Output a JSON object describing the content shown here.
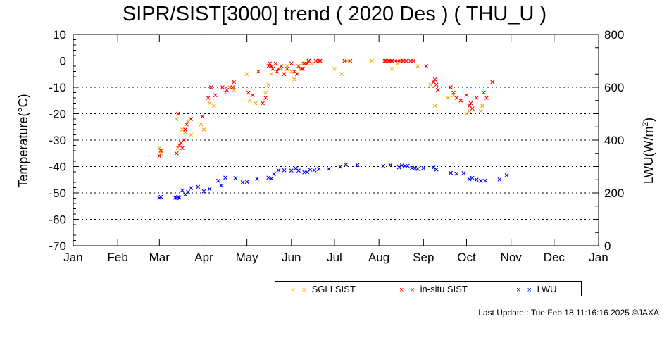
{
  "chart_data": {
    "type": "scatter",
    "title": "SIPR/SIST[3000] trend ( 2020 Des ) ( THU_U )",
    "ylabel": "Temperature(°C)",
    "y2label_main": "LWU(W/m",
    "y2label_sup": "2",
    "y2label_end": ")",
    "ylim": [
      -70,
      10
    ],
    "y2lim": [
      0,
      800
    ],
    "xlim_days": [
      0,
      366
    ],
    "y_ticks": [
      "10",
      "0",
      "-10",
      "-20",
      "-30",
      "-40",
      "-50",
      "-60",
      "-70"
    ],
    "y2_ticks": [
      "800",
      "600",
      "400",
      "200",
      "0"
    ],
    "x_ticks": [
      "Jan",
      "Feb",
      "Mar",
      "Apr",
      "May",
      "Jun",
      "Jul",
      "Aug",
      "Sep",
      "Oct",
      "Nov",
      "Dec",
      "Jan"
    ],
    "grid": "horizontal dotted",
    "colors": {
      "sgli": "#ffa500",
      "insitu": "#ff0000",
      "lwu": "#0000ff"
    },
    "series": [
      {
        "name": "SGLI SIST",
        "axis": "left",
        "x": [
          "2020-03-01",
          "2020-03-02",
          "2020-03-13",
          "2020-03-14",
          "2020-03-17",
          "2020-03-19",
          "2020-03-21",
          "2020-03-23",
          "2020-03-30",
          "2020-04-01",
          "2020-04-05",
          "2020-04-08",
          "2020-04-16",
          "2020-04-19",
          "2020-04-22",
          "2020-05-01",
          "2020-05-03",
          "2020-05-07",
          "2020-05-14",
          "2020-05-16",
          "2020-05-18",
          "2020-05-22",
          "2020-05-25",
          "2020-05-27",
          "2020-05-29",
          "2020-06-01",
          "2020-06-03",
          "2020-06-05",
          "2020-06-07",
          "2020-06-09",
          "2020-06-11",
          "2020-06-13",
          "2020-06-15",
          "2020-06-21",
          "2020-07-01",
          "2020-07-06",
          "2020-07-10",
          "2020-07-27",
          "2020-08-07",
          "2020-08-10",
          "2020-08-14",
          "2020-08-17",
          "2020-08-28",
          "2020-09-06",
          "2020-09-09",
          "2020-09-18",
          "2020-09-22",
          "2020-09-27",
          "2020-10-01",
          "2020-10-03",
          "2020-10-11",
          "2020-10-12"
        ],
        "y": [
          -33,
          -35,
          -22,
          -33,
          -26,
          -27,
          -23,
          -28,
          -24,
          -26,
          -16,
          -17,
          -12,
          -10,
          -11,
          -5,
          -15,
          -16,
          -12,
          -9,
          -5,
          -4,
          -3,
          -5,
          -2,
          -4,
          -7,
          -5,
          -3,
          -1,
          -1,
          0,
          -1,
          0,
          -3,
          -5,
          0,
          0,
          0,
          -3,
          -1,
          0,
          -2,
          -9,
          -17,
          -14,
          -13,
          -15,
          -20,
          -19,
          -19,
          -17
        ]
      },
      {
        "name": "in-situ SIST",
        "axis": "left",
        "x": [
          "2020-03-01",
          "2020-03-02",
          "2020-03-13",
          "2020-03-14",
          "2020-03-15",
          "2020-03-16",
          "2020-03-17",
          "2020-03-18",
          "2020-03-19",
          "2020-03-20",
          "2020-03-23",
          "2020-03-31",
          "2020-04-04",
          "2020-04-06",
          "2020-04-09",
          "2020-04-14",
          "2020-04-17",
          "2020-04-21",
          "2020-04-22",
          "2020-05-02",
          "2020-05-05",
          "2020-05-09",
          "2020-05-12",
          "2020-05-14",
          "2020-05-16",
          "2020-05-17",
          "2020-05-18",
          "2020-05-19",
          "2020-05-21",
          "2020-05-22",
          "2020-05-23",
          "2020-05-25",
          "2020-05-27",
          "2020-05-29",
          "2020-06-01",
          "2020-06-03",
          "2020-06-05",
          "2020-06-06",
          "2020-06-08",
          "2020-06-09",
          "2020-06-10",
          "2020-06-12",
          "2020-06-13",
          "2020-06-18",
          "2020-06-20",
          "2020-06-21",
          "2020-07-08",
          "2020-07-12",
          "2020-08-05",
          "2020-08-06",
          "2020-08-08",
          "2020-08-09",
          "2020-08-10",
          "2020-08-12",
          "2020-08-14",
          "2020-08-16",
          "2020-08-18",
          "2020-08-20",
          "2020-08-23",
          "2020-08-25",
          "2020-09-03",
          "2020-09-08",
          "2020-09-09",
          "2020-09-10",
          "2020-09-11",
          "2020-09-20",
          "2020-09-22",
          "2020-09-24",
          "2020-09-27",
          "2020-10-01",
          "2020-10-03",
          "2020-10-04",
          "2020-10-05",
          "2020-10-08",
          "2020-10-13",
          "2020-10-15",
          "2020-10-19"
        ],
        "y": [
          -36,
          -34,
          -35,
          -20,
          -32,
          -31,
          -33,
          -30,
          -26,
          -24,
          -22,
          -21,
          -14,
          -10,
          -13,
          -10,
          -11,
          -10,
          -8,
          -12,
          -13,
          -4,
          -16,
          -14,
          -2,
          -1,
          -2,
          -3,
          -1,
          -4,
          -3,
          -2,
          -5,
          -3,
          -1,
          -4,
          -5,
          -2,
          -3,
          -3,
          -1,
          -1,
          0,
          0,
          0,
          0,
          0,
          0,
          0,
          0,
          0,
          0,
          0,
          0,
          0,
          0,
          0,
          0,
          0,
          0,
          -2,
          -8,
          -7,
          -9,
          -11,
          -10,
          -12,
          -14,
          -15,
          -13,
          -17,
          -16,
          -18,
          -14,
          -12,
          -14,
          -8
        ]
      },
      {
        "name": "LWU",
        "axis": "right",
        "x": [
          "2020-03-01",
          "2020-03-02",
          "2020-03-12",
          "2020-03-13",
          "2020-03-14",
          "2020-03-15",
          "2020-03-17",
          "2020-03-19",
          "2020-03-21",
          "2020-03-23",
          "2020-03-28",
          "2020-04-01",
          "2020-04-05",
          "2020-04-11",
          "2020-04-13",
          "2020-04-16",
          "2020-04-23",
          "2020-04-28",
          "2020-05-01",
          "2020-05-08",
          "2020-05-16",
          "2020-05-18",
          "2020-05-20",
          "2020-05-23",
          "2020-05-27",
          "2020-06-01",
          "2020-06-04",
          "2020-06-06",
          "2020-06-10",
          "2020-06-12",
          "2020-06-14",
          "2020-06-17",
          "2020-06-20",
          "2020-06-27",
          "2020-07-05",
          "2020-07-09",
          "2020-07-17",
          "2020-08-04",
          "2020-08-09",
          "2020-08-15",
          "2020-08-17",
          "2020-08-19",
          "2020-08-21",
          "2020-08-24",
          "2020-08-26",
          "2020-08-28",
          "2020-09-01",
          "2020-09-08",
          "2020-09-10",
          "2020-09-20",
          "2020-09-24",
          "2020-09-29",
          "2020-10-03",
          "2020-10-05",
          "2020-10-08",
          "2020-10-11",
          "2020-10-14",
          "2020-10-24",
          "2020-10-29"
        ],
        "y": [
          181,
          185,
          182,
          180,
          184,
          183,
          210,
          194,
          204,
          218,
          223,
          206,
          215,
          246,
          228,
          258,
          256,
          240,
          242,
          254,
          258,
          254,
          272,
          286,
          286,
          285,
          293,
          285,
          278,
          279,
          288,
          286,
          290,
          291,
          299,
          307,
          306,
          302,
          306,
          297,
          304,
          302,
          303,
          294,
          294,
          291,
          294,
          296,
          289,
          276,
          273,
          275,
          252,
          257,
          250,
          246,
          247,
          251,
          267
        ]
      }
    ]
  },
  "legend": {
    "sgli_label": "SGLI SIST",
    "insitu_label": "in-situ SIST",
    "lwu_label": "LWU",
    "marker": "× ×"
  },
  "footer": {
    "last_update": "Last Update : Tue Feb 18 11:16:16 2025  ©JAXA"
  }
}
